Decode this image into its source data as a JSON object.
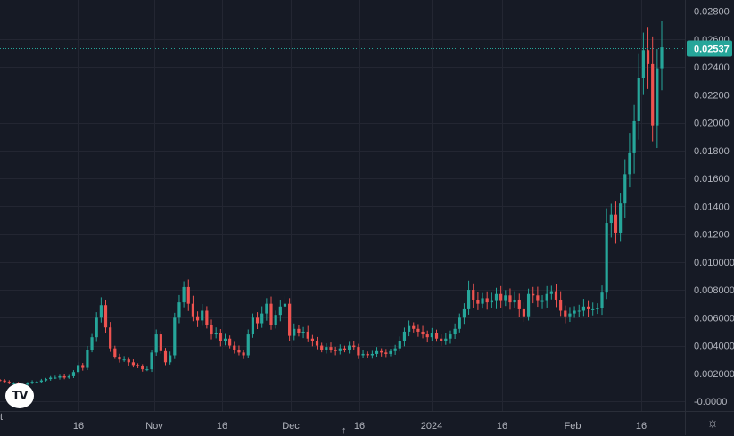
{
  "colors": {
    "background": "#161a25",
    "grid": "#232632",
    "up": "#26a69a",
    "down": "#ef5350",
    "text": "#b2b5be",
    "price_label_bg": "#26a69a",
    "price_line": "#26a69a"
  },
  "logo_text": "TV",
  "icons": {
    "settings": "gear-icon",
    "scroll": "arrow-up-icon"
  },
  "left_marker": "t",
  "chart_data": {
    "type": "candlestick",
    "title": "",
    "xlabel": "",
    "ylabel": "",
    "ylim": [
      -0.0007,
      0.0288
    ],
    "y_tick_labels": [
      "0.02800",
      "0.02600",
      "0.02400",
      "0.02200",
      "0.02000",
      "0.01800",
      "0.01600",
      "0.01400",
      "0.01200",
      "0.010000",
      "0.008000",
      "0.006000",
      "0.004000",
      "0.002000",
      "-0.0000"
    ],
    "x_tick_labels": [
      "16",
      "Nov",
      "16",
      "Dec",
      "16",
      "2024",
      "16",
      "Feb",
      "16"
    ],
    "last_price": 0.02537,
    "last_price_label": "0.02537",
    "series": [
      {
        "period": "2023-10 late",
        "values": [
          0.0015,
          0.0014,
          0.0013,
          0.0013,
          0.0012,
          0.0012,
          0.0013,
          0.0014,
          0.0014,
          0.0015,
          0.0016,
          0.0017,
          0.0017,
          0.0018,
          0.0017,
          0.0018,
          0.0021,
          0.0026,
          0.0024,
          0.0037,
          0.0046,
          0.006,
          0.0069,
          0.0053,
          0.0038,
          0.0032,
          0.003,
          0.003,
          0.0028,
          0.0026,
          0.0025,
          0.0023
        ]
      },
      {
        "period": "2023-11",
        "values": [
          0.0023,
          0.0035,
          0.0048,
          0.0036,
          0.0028,
          0.0033,
          0.006,
          0.0071,
          0.0082,
          0.007,
          0.0061,
          0.0058,
          0.0065,
          0.0055,
          0.0048,
          0.0049,
          0.0043,
          0.0045,
          0.004,
          0.0037,
          0.0035,
          0.0033,
          0.0048,
          0.006,
          0.0056,
          0.0063,
          0.007,
          0.0055,
          0.0062,
          0.0068
        ]
      },
      {
        "period": "2023-12",
        "values": [
          0.007,
          0.0047,
          0.0052,
          0.0049,
          0.005,
          0.0045,
          0.0043,
          0.004,
          0.0037,
          0.0039,
          0.0037,
          0.0036,
          0.0038,
          0.0037,
          0.004,
          0.0039,
          0.0033,
          0.0034,
          0.0033,
          0.0034,
          0.0036,
          0.0035,
          0.0034,
          0.0036,
          0.0038,
          0.0043,
          0.005,
          0.0054,
          0.0052,
          0.005,
          0.0048
        ]
      },
      {
        "period": "2024-01",
        "values": [
          0.0046,
          0.0049,
          0.0045,
          0.0043,
          0.0045,
          0.0048,
          0.0052,
          0.006,
          0.0066,
          0.008,
          0.0073,
          0.007,
          0.0074,
          0.0071,
          0.0072,
          0.0077,
          0.0072,
          0.0076,
          0.0071,
          0.0073,
          0.0066,
          0.0061,
          0.0077,
          0.0076,
          0.0072,
          0.0072,
          0.0077,
          0.0079,
          0.0073,
          0.0065,
          0.0061
        ]
      },
      {
        "period": "2024-02",
        "values": [
          0.0063,
          0.0065,
          0.0065,
          0.0068,
          0.0066,
          0.0066,
          0.0067,
          0.0078,
          0.0128,
          0.0134,
          0.0121,
          0.0142,
          0.0163,
          0.0178,
          0.0201,
          0.0232,
          0.0252,
          0.0242,
          0.0198,
          0.0239,
          0.0254
        ]
      }
    ]
  }
}
